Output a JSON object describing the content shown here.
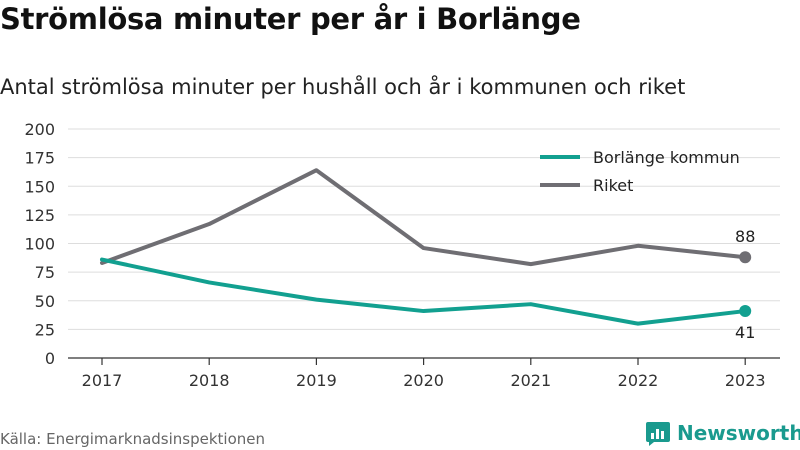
{
  "header": {
    "title": "Strömlösa minuter per år i Borlänge",
    "subtitle": "Antal strömlösa minuter per hushåll och år i kommunen och riket"
  },
  "footer": {
    "source": "Källa: Energimarknadsinspektionen",
    "brand": "Newsworthy",
    "brand_icon": "newsworthy-logo-icon"
  },
  "colors": {
    "borlange": "#12a090",
    "riket": "#6f6e73",
    "grid": "#dddddd",
    "brand": "#1a9a8e"
  },
  "chart_data": {
    "type": "line",
    "x": [
      "2017",
      "2018",
      "2019",
      "2020",
      "2021",
      "2022",
      "2023"
    ],
    "ylim": [
      0,
      200
    ],
    "yticks": [
      0,
      25,
      50,
      75,
      100,
      125,
      150,
      175,
      200
    ],
    "grid": true,
    "legend_position": "top-right",
    "series": [
      {
        "name": "Borlänge kommun",
        "values": [
          86,
          66,
          51,
          41,
          47,
          30,
          41
        ],
        "end_label": "41",
        "color": "#12a090"
      },
      {
        "name": "Riket",
        "values": [
          83,
          117,
          164,
          96,
          82,
          98,
          88
        ],
        "end_label": "88",
        "color": "#6f6e73"
      }
    ]
  }
}
